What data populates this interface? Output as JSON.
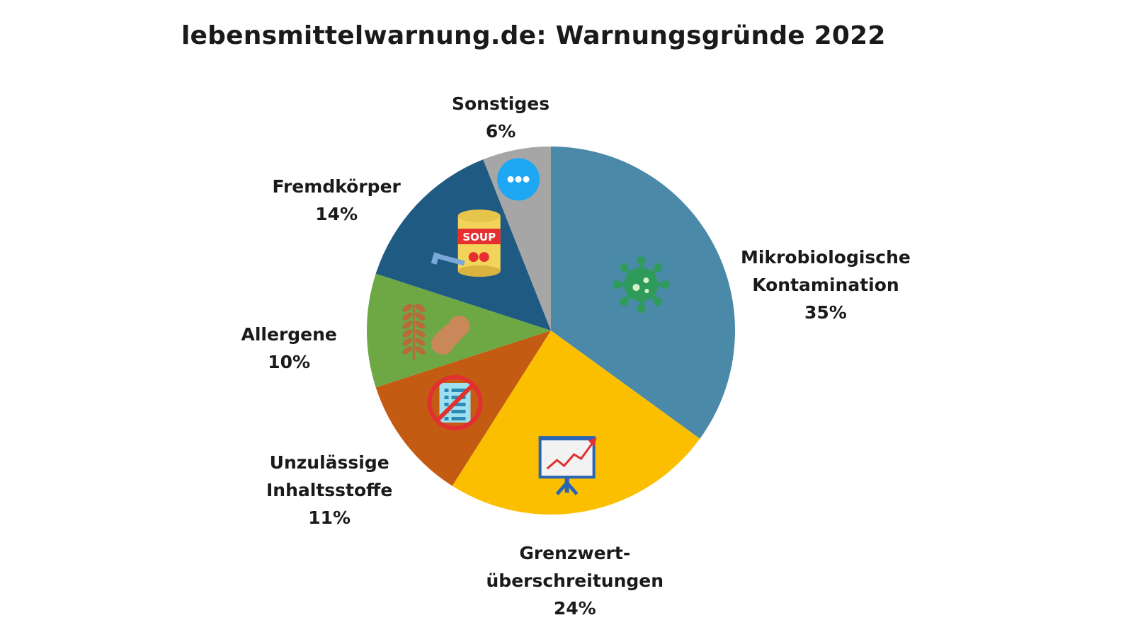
{
  "title": "lebensmittelwarnung.de: Warnungsgründe 2022",
  "chart_data": {
    "type": "pie",
    "title": "lebensmittelwarnung.de: Warnungsgründe 2022",
    "start": "12 o'clock",
    "direction": "clockwise",
    "slices": [
      {
        "label_lines": [
          "Mikrobiologische",
          "Kontamination"
        ],
        "value": 35,
        "value_label": "35%",
        "color": "#4a8aa8",
        "icon": "virus-icon"
      },
      {
        "label_lines": [
          "Grenzwert-",
          "überschreitungen"
        ],
        "value": 24,
        "value_label": "24%",
        "color": "#fcbf00",
        "icon": "presentation-chart-icon"
      },
      {
        "label_lines": [
          "Unzulässige",
          "Inhaltsstoffe"
        ],
        "value": 11,
        "value_label": "11%",
        "color": "#c45b12",
        "icon": "prohibited-ingredients-list-icon"
      },
      {
        "label_lines": [
          "Allergene"
        ],
        "value": 10,
        "value_label": "10%",
        "color": "#6ea845",
        "icon": "wheat-peanut-icon"
      },
      {
        "label_lines": [
          "Fremdkörper"
        ],
        "value": 14,
        "value_label": "14%",
        "color": "#1f5a82",
        "icon": "soup-can-screw-icon"
      },
      {
        "label_lines": [
          "Sonstiges"
        ],
        "value": 6,
        "value_label": "6%",
        "color": "#a6a6a6",
        "icon": "more-dots-icon"
      }
    ]
  },
  "icon_colors": {
    "virus": "#2f9b5b",
    "virus_dots": "#d8f0c8",
    "chart_board": "#f2f2f2",
    "chart_frame": "#2a64b4",
    "chart_line": "#e03030",
    "prohibit": "#e03030",
    "list_bg": "#9ee0f0",
    "list_lines": "#2a8ab4",
    "grain": "#b86a3a",
    "peanut": "#c9885a",
    "can_body": "#f3d45a",
    "can_band": "#e63030",
    "screw": "#7aa8d8",
    "dots_circle": "#1ea7f2"
  }
}
